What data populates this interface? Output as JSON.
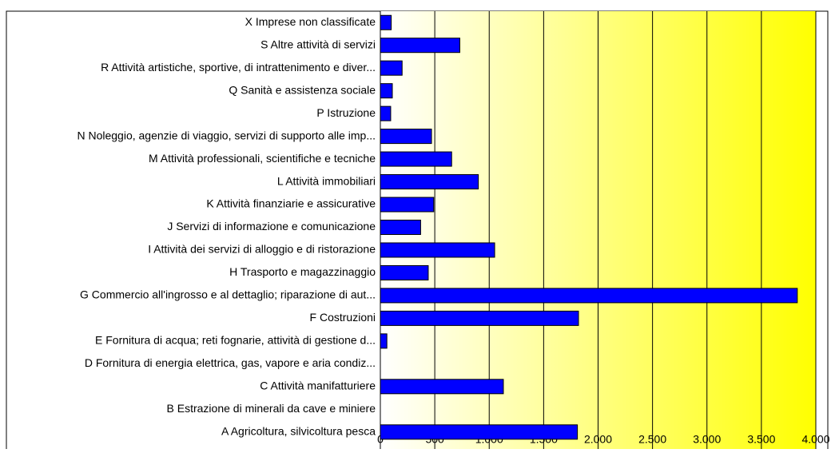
{
  "chart_data": {
    "type": "barh",
    "categories": [
      "X Imprese non classificate",
      "S Altre attività di servizi",
      "R Attività artistiche, sportive, di intrattenimento e diver...",
      "Q Sanità e assistenza sociale",
      "P Istruzione",
      "N Noleggio, agenzie di viaggio, servizi di supporto alle imp...",
      "M Attività professionali, scientifiche e tecniche",
      "L Attività immobiliari",
      "K Attività finanziarie e assicurative",
      "J Servizi di informazione e comunicazione",
      "I Attività dei servizi di alloggio e di ristorazione",
      "H Trasporto e magazzinaggio",
      "G Commercio all'ingrosso e al dettaglio; riparazione di aut...",
      "F Costruzioni",
      "E Fornitura di acqua; reti fognarie, attività di gestione d...",
      "D Fornitura di energia elettrica, gas, vapore e aria condiz...",
      "C Attività manifatturiere",
      "B Estrazione di minerali da cave e miniere",
      "A Agricoltura, silvicoltura pesca"
    ],
    "values": [
      100,
      730,
      200,
      110,
      95,
      470,
      655,
      900,
      490,
      370,
      1050,
      440,
      3830,
      1820,
      60,
      0,
      1130,
      0,
      1810
    ],
    "color": "#0000ff",
    "xlim": [
      0,
      4000
    ],
    "xticks": [
      0,
      500,
      {
        "value": 1000,
        "label": "1.000"
      },
      {
        "value": 1500,
        "label": "1.500"
      },
      {
        "value": 2000,
        "label": "2.000"
      },
      {
        "value": 2500,
        "label": "2.500"
      },
      {
        "value": 3000,
        "label": "3.000"
      },
      {
        "value": 3500,
        "label": "3.500"
      },
      {
        "value": 4000,
        "label": "4.000"
      }
    ],
    "grid": true
  }
}
